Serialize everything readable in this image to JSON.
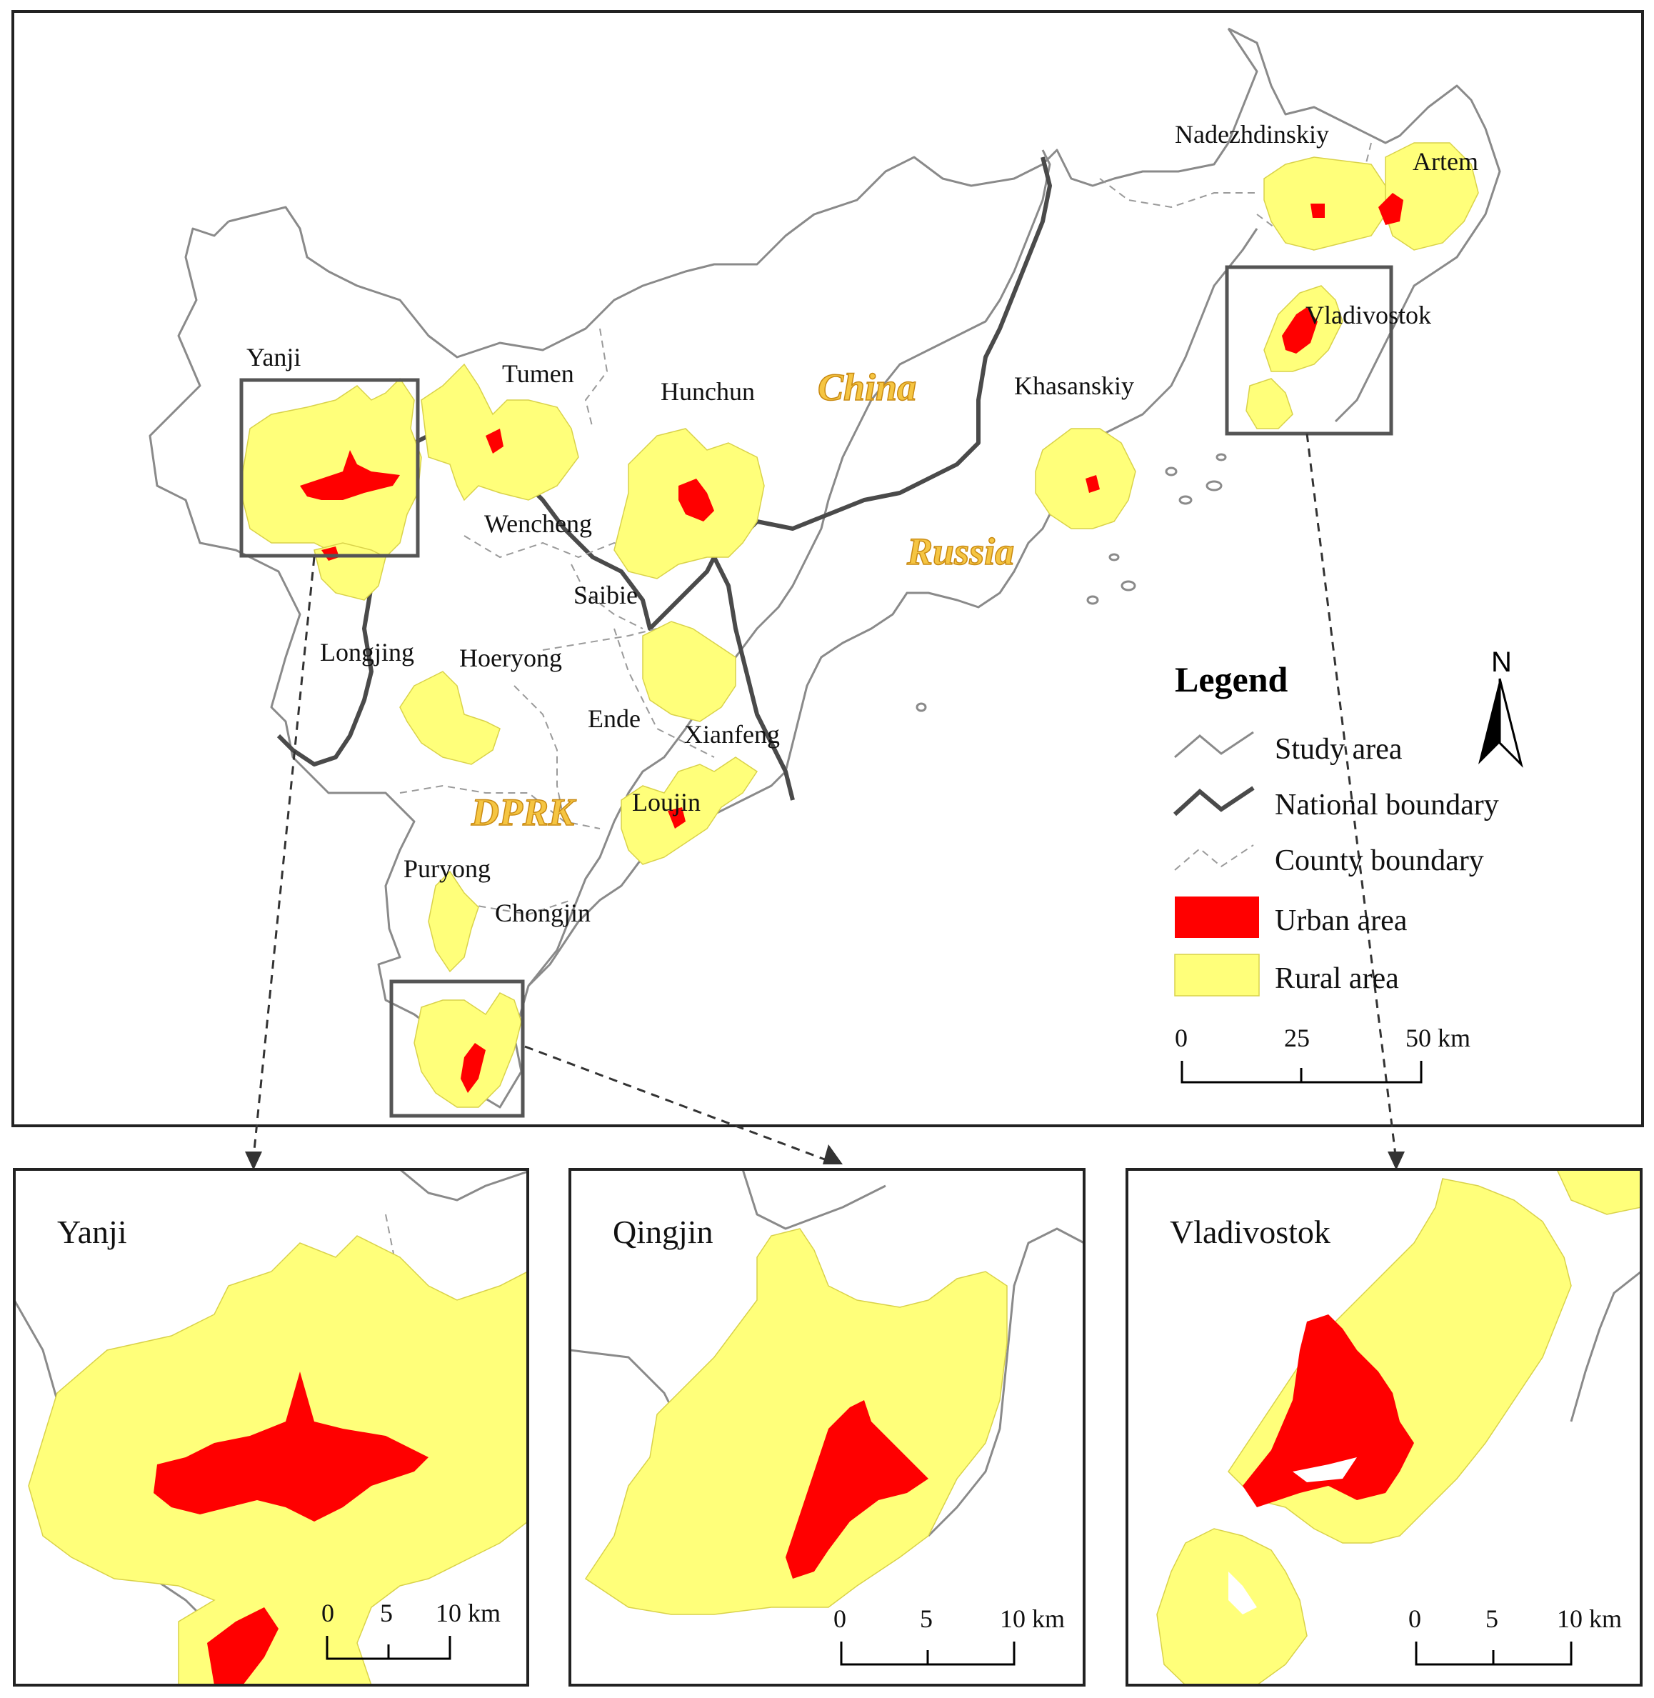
{
  "main_map": {
    "place_labels": [
      {
        "id": "nadezhdinskiy",
        "text": "Nadezhdinskiy"
      },
      {
        "id": "artem",
        "text": "Artem"
      },
      {
        "id": "vladivostok",
        "text": "Vladivostok"
      },
      {
        "id": "yanji",
        "text": "Yanji"
      },
      {
        "id": "tumen",
        "text": "Tumen"
      },
      {
        "id": "hunchun",
        "text": "Hunchun"
      },
      {
        "id": "khasanskiy",
        "text": "Khasanskiy"
      },
      {
        "id": "wencheng",
        "text": "Wencheng"
      },
      {
        "id": "saibie",
        "text": "Saibie"
      },
      {
        "id": "longjing",
        "text": "Longjing"
      },
      {
        "id": "hoeryong",
        "text": "Hoeryong"
      },
      {
        "id": "ende",
        "text": "Ende"
      },
      {
        "id": "xianfeng",
        "text": "Xianfeng"
      },
      {
        "id": "loujin",
        "text": "Loujin"
      },
      {
        "id": "puryong",
        "text": "Puryong"
      },
      {
        "id": "chongjin",
        "text": "Chongjin"
      }
    ],
    "countries": {
      "china": "China",
      "russia": "Russia",
      "dprk": "DPRK"
    }
  },
  "legend": {
    "title": "Legend",
    "items": [
      {
        "label": "Study area",
        "symbol": "study-line",
        "color": "#8a8a8a"
      },
      {
        "label": "National boundary",
        "symbol": "national-line",
        "color": "#4a4a4a"
      },
      {
        "label": "County boundary",
        "symbol": "county-dash",
        "color": "#9a9a9a"
      },
      {
        "label": "Urban area",
        "symbol": "fill",
        "color": "#ff0000"
      },
      {
        "label": "Rural area",
        "symbol": "fill",
        "color": "#ffff7a"
      }
    ]
  },
  "north_arrow": {
    "label": "N"
  },
  "main_scale": {
    "ticks": [
      "0",
      "25",
      "50 km"
    ]
  },
  "insets": [
    {
      "id": "yanji",
      "title": "Yanji",
      "scale_ticks": [
        "0",
        "5",
        "10 km"
      ]
    },
    {
      "id": "qingjin",
      "title": "Qingjin",
      "scale_ticks": [
        "0",
        "5",
        "10 km"
      ]
    },
    {
      "id": "vladivostok",
      "title": "Vladivostok",
      "scale_ticks": [
        "0",
        "5",
        "10 km"
      ]
    }
  ],
  "colors": {
    "urban": "#ff0000",
    "rural": "#ffff7a",
    "study_area": "#8a8a8a",
    "national": "#4a4a4a"
  }
}
